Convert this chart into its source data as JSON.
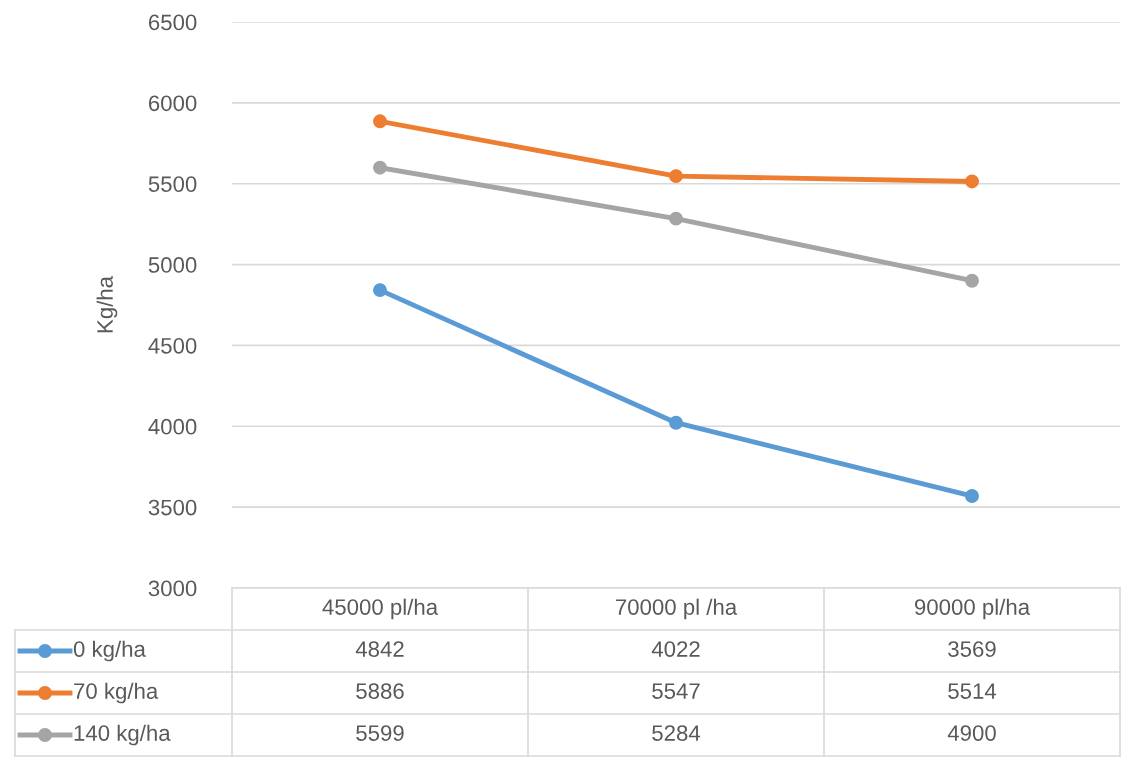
{
  "chart_data": {
    "type": "line",
    "ylabel": "Kg/ha",
    "categories": [
      "45000 pl/ha",
      "70000 pl /ha",
      "90000 pl/ha"
    ],
    "series": [
      {
        "name": "0 kg/ha",
        "color": "#5b9bd5",
        "values": [
          4842,
          4022,
          3569
        ]
      },
      {
        "name": "70 kg/ha",
        "color": "#ed7d31",
        "values": [
          5886,
          5547,
          5514
        ]
      },
      {
        "name": "140 kg/ha",
        "color": "#a5a5a5",
        "values": [
          5599,
          5284,
          4900
        ]
      }
    ],
    "ylim": [
      3000,
      6500
    ],
    "yticks": [
      3000,
      3500,
      4000,
      4500,
      5000,
      5500,
      6000,
      6500
    ],
    "grid": "y",
    "marker": "circle",
    "line_style": "solid",
    "data_labels": true,
    "legend": "bottom"
  }
}
